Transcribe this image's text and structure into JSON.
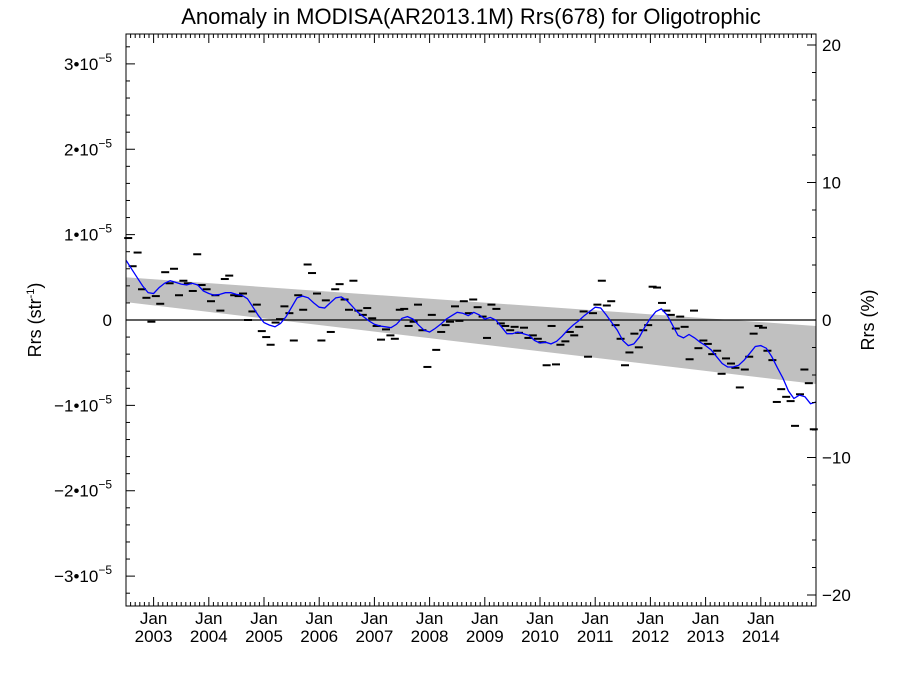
{
  "chart_data": {
    "type": "scatter",
    "title": "Anomaly in MODISA(AR2013.1M) Rrs(678) for Oligotrophic",
    "ylabel_left": {
      "base": "Rrs (str",
      "sup": "-1",
      "close": ")"
    },
    "ylabel_right": "Rrs (%)",
    "x_range": [
      2002.5,
      2015.0
    ],
    "y_left_range": [
      -3.35e-05,
      3.35e-05
    ],
    "y_right_range": [
      -20.8,
      20.8
    ],
    "x_ticks": [
      {
        "year": 2003,
        "label_top": "Jan",
        "label_bottom": "2003"
      },
      {
        "year": 2004,
        "label_top": "Jan",
        "label_bottom": "2004"
      },
      {
        "year": 2005,
        "label_top": "Jan",
        "label_bottom": "2005"
      },
      {
        "year": 2006,
        "label_top": "Jan",
        "label_bottom": "2006"
      },
      {
        "year": 2007,
        "label_top": "Jan",
        "label_bottom": "2007"
      },
      {
        "year": 2008,
        "label_top": "Jan",
        "label_bottom": "2008"
      },
      {
        "year": 2009,
        "label_top": "Jan",
        "label_bottom": "2009"
      },
      {
        "year": 2010,
        "label_top": "Jan",
        "label_bottom": "2010"
      },
      {
        "year": 2011,
        "label_top": "Jan",
        "label_bottom": "2011"
      },
      {
        "year": 2012,
        "label_top": "Jan",
        "label_bottom": "2012"
      },
      {
        "year": 2013,
        "label_top": "Jan",
        "label_bottom": "2013"
      },
      {
        "year": 2014,
        "label_top": "Jan",
        "label_bottom": "2014"
      }
    ],
    "y_left_ticks": [
      {
        "value": 3e-05,
        "mant": "3•10",
        "exp": "−5"
      },
      {
        "value": 2e-05,
        "mant": "2•10",
        "exp": "−5"
      },
      {
        "value": 1e-05,
        "mant": "1•10",
        "exp": "−5"
      },
      {
        "value": 0,
        "mant": "0",
        "exp": ""
      },
      {
        "value": -1e-05,
        "mant": "−1•10",
        "exp": "−5"
      },
      {
        "value": -2e-05,
        "mant": "−2•10",
        "exp": "−5"
      },
      {
        "value": -3e-05,
        "mant": "−3•10",
        "exp": "−5"
      }
    ],
    "y_right_ticks": [
      {
        "value": 20,
        "label": "20"
      },
      {
        "value": 10,
        "label": "10"
      },
      {
        "value": 0,
        "label": "0"
      },
      {
        "value": -10,
        "label": "−10"
      },
      {
        "value": -20,
        "label": "−20"
      }
    ],
    "zero_line": 0,
    "trend_band": {
      "x": [
        2002.5,
        2015.0
      ],
      "upper": [
        5e-06,
        -7e-07
      ],
      "lower": [
        2.1e-06,
        -7.5e-06
      ]
    },
    "monthly_anomalies": [
      [
        2002.54,
        9.6e-06
      ],
      [
        2002.62,
        6.3e-06
      ],
      [
        2002.71,
        7.9e-06
      ],
      [
        2002.79,
        3.6e-06
      ],
      [
        2002.87,
        2.6e-06
      ],
      [
        2002.96,
        -2e-07
      ],
      [
        2003.04,
        2.8e-06
      ],
      [
        2003.12,
        1.9e-06
      ],
      [
        2003.21,
        5.6e-06
      ],
      [
        2003.29,
        4.3e-06
      ],
      [
        2003.37,
        6e-06
      ],
      [
        2003.46,
        2.9e-06
      ],
      [
        2003.54,
        4.6e-06
      ],
      [
        2003.62,
        4.3e-06
      ],
      [
        2003.71,
        3.4e-06
      ],
      [
        2003.79,
        7.7e-06
      ],
      [
        2003.87,
        4.1e-06
      ],
      [
        2003.96,
        3.6e-06
      ],
      [
        2004.04,
        2.2e-06
      ],
      [
        2004.12,
        2.9e-06
      ],
      [
        2004.21,
        1.1e-06
      ],
      [
        2004.29,
        4.8e-06
      ],
      [
        2004.37,
        5.2e-06
      ],
      [
        2004.46,
        2.9e-06
      ],
      [
        2004.54,
        2.8e-06
      ],
      [
        2004.62,
        3.1e-06
      ],
      [
        2004.71,
        0.0
      ],
      [
        2004.79,
        1e-06
      ],
      [
        2004.87,
        1.8e-06
      ],
      [
        2004.96,
        -1.3e-06
      ],
      [
        2005.04,
        -2e-06
      ],
      [
        2005.12,
        -2.9e-06
      ],
      [
        2005.21,
        -3e-07
      ],
      [
        2005.29,
        1e-07
      ],
      [
        2005.37,
        1.6e-06
      ],
      [
        2005.46,
        8e-07
      ],
      [
        2005.54,
        -2.4e-06
      ],
      [
        2005.62,
        2.9e-06
      ],
      [
        2005.71,
        1.2e-06
      ],
      [
        2005.79,
        6.5e-06
      ],
      [
        2005.87,
        5.5e-06
      ],
      [
        2005.96,
        3.1e-06
      ],
      [
        2006.04,
        -2.4e-06
      ],
      [
        2006.12,
        2.3e-06
      ],
      [
        2006.21,
        -1.4e-06
      ],
      [
        2006.29,
        3.6e-06
      ],
      [
        2006.37,
        4.2e-06
      ],
      [
        2006.46,
        2.4e-06
      ],
      [
        2006.54,
        1.2e-06
      ],
      [
        2006.62,
        4.6e-06
      ],
      [
        2006.71,
        1.1e-06
      ],
      [
        2006.79,
        6e-07
      ],
      [
        2006.87,
        1.4e-06
      ],
      [
        2006.96,
        2e-07
      ],
      [
        2007.04,
        -7e-07
      ],
      [
        2007.12,
        -2.3e-06
      ],
      [
        2007.21,
        -1.1e-06
      ],
      [
        2007.29,
        -1.8e-06
      ],
      [
        2007.37,
        -2.2e-06
      ],
      [
        2007.46,
        1.2e-06
      ],
      [
        2007.54,
        1.3e-06
      ],
      [
        2007.62,
        -7e-07
      ],
      [
        2007.71,
        -2e-07
      ],
      [
        2007.79,
        1.8e-06
      ],
      [
        2007.87,
        -1.2e-06
      ],
      [
        2007.96,
        -5.5e-06
      ],
      [
        2008.04,
        6e-07
      ],
      [
        2008.12,
        -3.5e-06
      ],
      [
        2008.21,
        -1.4e-06
      ],
      [
        2008.29,
        -6e-07
      ],
      [
        2008.37,
        -2e-07
      ],
      [
        2008.46,
        1.6e-06
      ],
      [
        2008.54,
        -1e-07
      ],
      [
        2008.62,
        2.2e-06
      ],
      [
        2008.71,
        8e-07
      ],
      [
        2008.79,
        2.4e-06
      ],
      [
        2008.87,
        1.5e-06
      ],
      [
        2008.96,
        4e-07
      ],
      [
        2009.04,
        -2.1e-06
      ],
      [
        2009.12,
        1.8e-06
      ],
      [
        2009.21,
        1.3e-06
      ],
      [
        2009.29,
        -4e-07
      ],
      [
        2009.37,
        -7e-07
      ],
      [
        2009.46,
        -1.2e-06
      ],
      [
        2009.54,
        -8e-07
      ],
      [
        2009.62,
        -1.5e-06
      ],
      [
        2009.71,
        -9e-07
      ],
      [
        2009.79,
        -2.1e-06
      ],
      [
        2009.87,
        -1.8e-06
      ],
      [
        2009.96,
        -2.2e-06
      ],
      [
        2010.04,
        -2.6e-06
      ],
      [
        2010.12,
        -5.3e-06
      ],
      [
        2010.21,
        -7e-07
      ],
      [
        2010.29,
        -5.2e-06
      ],
      [
        2010.37,
        -2.9e-06
      ],
      [
        2010.46,
        -2.5e-06
      ],
      [
        2010.54,
        -1.4e-06
      ],
      [
        2010.62,
        -1.8e-06
      ],
      [
        2010.71,
        -8e-07
      ],
      [
        2010.79,
        1e-06
      ],
      [
        2010.87,
        -4.3e-06
      ],
      [
        2010.96,
        8e-07
      ],
      [
        2011.04,
        1.8e-06
      ],
      [
        2011.12,
        4.6e-06
      ],
      [
        2011.21,
        1.7e-06
      ],
      [
        2011.29,
        2.2e-06
      ],
      [
        2011.37,
        -6e-07
      ],
      [
        2011.46,
        -2.2e-06
      ],
      [
        2011.54,
        -5.3e-06
      ],
      [
        2011.62,
        -3.8e-06
      ],
      [
        2011.71,
        -1.6e-06
      ],
      [
        2011.79,
        -3.2e-06
      ],
      [
        2011.87,
        -1.2e-06
      ],
      [
        2011.96,
        -6e-07
      ],
      [
        2012.04,
        3.9e-06
      ],
      [
        2012.12,
        3.8e-06
      ],
      [
        2012.21,
        2e-06
      ],
      [
        2012.29,
        1.1e-06
      ],
      [
        2012.37,
        6e-07
      ],
      [
        2012.46,
        -1e-06
      ],
      [
        2012.54,
        4e-07
      ],
      [
        2012.62,
        -8e-07
      ],
      [
        2012.71,
        -4.6e-06
      ],
      [
        2012.79,
        1.1e-06
      ],
      [
        2012.87,
        -3.3e-06
      ],
      [
        2012.96,
        -2.4e-06
      ],
      [
        2013.04,
        -2.8e-06
      ],
      [
        2013.12,
        -4e-06
      ],
      [
        2013.21,
        -3.6e-06
      ],
      [
        2013.29,
        -6.3e-06
      ],
      [
        2013.37,
        -4.5e-06
      ],
      [
        2013.46,
        -5.1e-06
      ],
      [
        2013.54,
        -5.6e-06
      ],
      [
        2013.62,
        -7.9e-06
      ],
      [
        2013.71,
        -5.8e-06
      ],
      [
        2013.79,
        -4.3e-06
      ],
      [
        2013.87,
        -1.6e-06
      ],
      [
        2013.96,
        -7e-07
      ],
      [
        2014.04,
        -9e-07
      ],
      [
        2014.12,
        -3.6e-06
      ],
      [
        2014.21,
        -4.7e-06
      ],
      [
        2014.29,
        -9.6e-06
      ],
      [
        2014.37,
        -8.1e-06
      ],
      [
        2014.46,
        -9e-06
      ],
      [
        2014.54,
        -9.5e-06
      ],
      [
        2014.62,
        -1.24e-05
      ],
      [
        2014.71,
        -8.7e-06
      ],
      [
        2014.79,
        -5.8e-06
      ],
      [
        2014.87,
        -7.4e-06
      ],
      [
        2014.96,
        -1.28e-05
      ]
    ],
    "smoothed_series": [
      [
        2002.5,
        7e-06
      ],
      [
        2002.6,
        6e-06
      ],
      [
        2002.7,
        5e-06
      ],
      [
        2002.8,
        4e-06
      ],
      [
        2002.9,
        3.2e-06
      ],
      [
        2003.0,
        3.1e-06
      ],
      [
        2003.1,
        3.8e-06
      ],
      [
        2003.2,
        4.3e-06
      ],
      [
        2003.3,
        4.6e-06
      ],
      [
        2003.4,
        4.4e-06
      ],
      [
        2003.5,
        4.2e-06
      ],
      [
        2003.6,
        4.1e-06
      ],
      [
        2003.7,
        4.3e-06
      ],
      [
        2003.8,
        4.1e-06
      ],
      [
        2003.9,
        3.4e-06
      ],
      [
        2004.0,
        3.1e-06
      ],
      [
        2004.1,
        2.9e-06
      ],
      [
        2004.2,
        3e-06
      ],
      [
        2004.3,
        3.2e-06
      ],
      [
        2004.4,
        3.2e-06
      ],
      [
        2004.5,
        3e-06
      ],
      [
        2004.6,
        2.9e-06
      ],
      [
        2004.7,
        2.5e-06
      ],
      [
        2004.8,
        1.5e-06
      ],
      [
        2004.9,
        5e-07
      ],
      [
        2005.0,
        -3e-07
      ],
      [
        2005.1,
        -6e-07
      ],
      [
        2005.2,
        -8e-07
      ],
      [
        2005.3,
        -4e-07
      ],
      [
        2005.4,
        4e-07
      ],
      [
        2005.5,
        1.5e-06
      ],
      [
        2005.6,
        2.6e-06
      ],
      [
        2005.7,
        2.8e-06
      ],
      [
        2005.8,
        2.6e-06
      ],
      [
        2005.9,
        2e-06
      ],
      [
        2006.0,
        1.5e-06
      ],
      [
        2006.1,
        1.4e-06
      ],
      [
        2006.2,
        2e-06
      ],
      [
        2006.3,
        2.6e-06
      ],
      [
        2006.4,
        2.7e-06
      ],
      [
        2006.5,
        2.3e-06
      ],
      [
        2006.6,
        1.6e-06
      ],
      [
        2006.7,
        9e-07
      ],
      [
        2006.8,
        4e-07
      ],
      [
        2006.9,
        -1e-07
      ],
      [
        2007.0,
        -5e-07
      ],
      [
        2007.1,
        -7e-07
      ],
      [
        2007.2,
        -8e-07
      ],
      [
        2007.3,
        -9e-07
      ],
      [
        2007.4,
        -5e-07
      ],
      [
        2007.5,
        2e-07
      ],
      [
        2007.6,
        4e-07
      ],
      [
        2007.7,
        1e-07
      ],
      [
        2007.8,
        -6e-07
      ],
      [
        2007.9,
        -1.2e-06
      ],
      [
        2008.0,
        -1.4e-06
      ],
      [
        2008.1,
        -1e-06
      ],
      [
        2008.2,
        -5e-07
      ],
      [
        2008.3,
        1e-07
      ],
      [
        2008.4,
        5e-07
      ],
      [
        2008.5,
        9e-07
      ],
      [
        2008.6,
        8e-07
      ],
      [
        2008.7,
        5e-07
      ],
      [
        2008.8,
        9e-07
      ],
      [
        2008.9,
        6e-07
      ],
      [
        2009.0,
        1e-07
      ],
      [
        2009.1,
        3e-07
      ],
      [
        2009.2,
        0.0
      ],
      [
        2009.3,
        -8e-07
      ],
      [
        2009.4,
        -1.6e-06
      ],
      [
        2009.5,
        -1.6e-06
      ],
      [
        2009.6,
        -1.4e-06
      ],
      [
        2009.7,
        -1.6e-06
      ],
      [
        2009.8,
        -1.8e-06
      ],
      [
        2009.9,
        -2.4e-06
      ],
      [
        2010.0,
        -2.7e-06
      ],
      [
        2010.1,
        -2.6e-06
      ],
      [
        2010.2,
        -2.8e-06
      ],
      [
        2010.3,
        -2.5e-06
      ],
      [
        2010.4,
        -1.9e-06
      ],
      [
        2010.5,
        -1.2e-06
      ],
      [
        2010.6,
        -6e-07
      ],
      [
        2010.7,
        -1e-07
      ],
      [
        2010.8,
        5e-07
      ],
      [
        2010.9,
        1e-06
      ],
      [
        2011.0,
        1.5e-06
      ],
      [
        2011.1,
        1.4e-06
      ],
      [
        2011.2,
        6e-07
      ],
      [
        2011.3,
        -3e-07
      ],
      [
        2011.4,
        -1.2e-06
      ],
      [
        2011.5,
        -2.4e-06
      ],
      [
        2011.6,
        -3e-06
      ],
      [
        2011.7,
        -2.8e-06
      ],
      [
        2011.8,
        -2e-06
      ],
      [
        2011.9,
        -8e-07
      ],
      [
        2012.0,
        2e-07
      ],
      [
        2012.1,
        1e-06
      ],
      [
        2012.2,
        1.3e-06
      ],
      [
        2012.3,
        6e-07
      ],
      [
        2012.4,
        -6e-07
      ],
      [
        2012.5,
        -1.8e-06
      ],
      [
        2012.6,
        -2.1e-06
      ],
      [
        2012.7,
        -1.7e-06
      ],
      [
        2012.8,
        -2.1e-06
      ],
      [
        2012.9,
        -2.6e-06
      ],
      [
        2013.0,
        -3e-06
      ],
      [
        2013.1,
        -3.5e-06
      ],
      [
        2013.2,
        -4.3e-06
      ],
      [
        2013.3,
        -5.1e-06
      ],
      [
        2013.4,
        -5.5e-06
      ],
      [
        2013.5,
        -5.5e-06
      ],
      [
        2013.6,
        -5.3e-06
      ],
      [
        2013.7,
        -4.7e-06
      ],
      [
        2013.8,
        -3.9e-06
      ],
      [
        2013.9,
        -3.1e-06
      ],
      [
        2014.0,
        -3e-06
      ],
      [
        2014.1,
        -3.3e-06
      ],
      [
        2014.2,
        -4.3e-06
      ],
      [
        2014.3,
        -5.6e-06
      ],
      [
        2014.4,
        -6.8e-06
      ],
      [
        2014.5,
        -8.3e-06
      ],
      [
        2014.6,
        -9.2e-06
      ],
      [
        2014.7,
        -8.8e-06
      ],
      [
        2014.8,
        -9e-06
      ],
      [
        2014.9,
        -9.8e-06
      ],
      [
        2015.0,
        -9.6e-06
      ]
    ],
    "colors": {
      "band": "#c0c0c0",
      "smoothed": "#0000ff",
      "points": "#000000",
      "axis": "#000000"
    },
    "grid": false
  }
}
